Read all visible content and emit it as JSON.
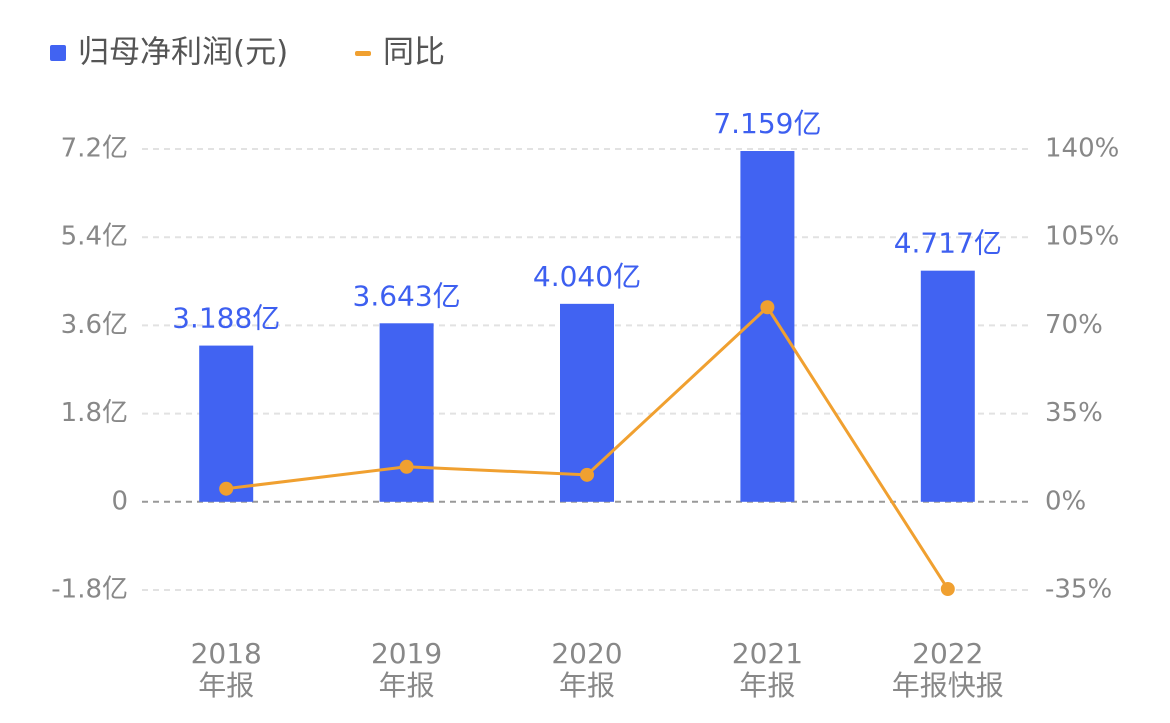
{
  "chart_data": {
    "type": "bar",
    "categories": [
      "2018\n年报",
      "2019\n年报",
      "2020\n年报",
      "2021\n年报",
      "2022\n年报快报"
    ],
    "series": [
      {
        "name": "归母净利润(元)",
        "type": "bar",
        "color": "#4163f2",
        "values": [
          3.188,
          3.643,
          4.04,
          7.159,
          4.717
        ],
        "value_labels": [
          "3.188亿",
          "3.643亿",
          "4.040亿",
          "7.159亿",
          "4.717亿"
        ]
      },
      {
        "name": "同比",
        "type": "line",
        "color": "#f0a030",
        "axis": "y2",
        "values": [
          5.2,
          13.9,
          10.7,
          77.2,
          -34.6
        ]
      }
    ],
    "ylim": [
      -1.8,
      7.2
    ],
    "yticks": [
      {
        "value": -1.8,
        "label": "-1.8亿"
      },
      0,
      {
        "value": 1.8,
        "label": "1.8亿"
      },
      {
        "value": 3.6,
        "label": "3.6亿"
      },
      {
        "value": 5.4,
        "label": "5.4亿"
      },
      {
        "value": 7.2,
        "label": "7.2亿"
      }
    ],
    "y2lim": [
      -35,
      140
    ],
    "y2ticks": [
      {
        "value": -35,
        "label": "-35%"
      },
      {
        "value": 0,
        "label": "0%"
      },
      {
        "value": 35,
        "label": "35%"
      },
      {
        "value": 70,
        "label": "70%"
      },
      {
        "value": 105,
        "label": "105%"
      },
      {
        "value": 140,
        "label": "140%"
      }
    ],
    "grid": true,
    "legend": "top-left"
  }
}
